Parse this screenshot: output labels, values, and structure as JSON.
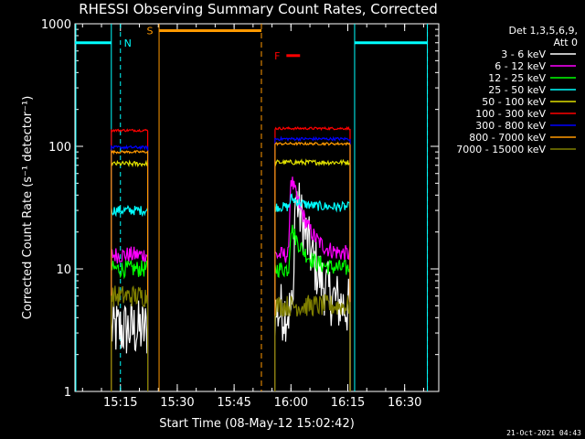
{
  "chart_data": {
    "type": "line",
    "title": "RHESSI Observing Summary Count Rates, Corrected",
    "xlabel": "Start Time (08-May-12 15:02:42)",
    "ylabel": "Corrected Count Rate (s⁻¹ detector⁻¹)",
    "yscale": "log",
    "ylim": [
      1,
      1000
    ],
    "xlim_minutes": [
      15.05,
      16.65
    ],
    "yticks": [
      {
        "value": 1,
        "label": "1"
      },
      {
        "value": 10,
        "label": "10"
      },
      {
        "value": 100,
        "label": "100"
      },
      {
        "value": 1000,
        "label": "1000"
      }
    ],
    "xticks": [
      {
        "value": 15.25,
        "label": "15:15"
      },
      {
        "value": 15.5,
        "label": "15:30"
      },
      {
        "value": 15.75,
        "label": "15:45"
      },
      {
        "value": 16.0,
        "label": "16:00"
      },
      {
        "value": 16.25,
        "label": "16:15"
      },
      {
        "value": 16.5,
        "label": "16:30"
      }
    ],
    "legend": {
      "position": "right",
      "header": [
        "Det 1,3,5,6,9,",
        "Att 0"
      ],
      "entries": [
        {
          "label": "3 - 6 keV",
          "color": "#ffffff"
        },
        {
          "label": "6 - 12 keV",
          "color": "#ff00ff"
        },
        {
          "label": "12 - 25 keV",
          "color": "#00ff00"
        },
        {
          "label": "25 - 50 keV",
          "color": "#00ffff"
        },
        {
          "label": "50 - 100 keV",
          "color": "#e0e000"
        },
        {
          "label": "100 - 300 keV",
          "color": "#ff0000"
        },
        {
          "label": "300 - 800 keV",
          "color": "#0000ff"
        },
        {
          "label": "800 - 7000 keV",
          "color": "#ff9900"
        },
        {
          "label": "7000 - 15000 keV",
          "color": "#808000"
        }
      ]
    },
    "segments": [
      [
        15.21,
        15.37
      ],
      [
        15.93,
        16.26
      ]
    ],
    "series": [
      {
        "name": "3 - 6 keV",
        "color": "#ffffff",
        "level": [
          3.2,
          4.5
        ],
        "noise": 0.25,
        "flare": {
          "t": 16.02,
          "peak": 40
        }
      },
      {
        "name": "6 - 12 keV",
        "color": "#ff00ff",
        "level": [
          13,
          13
        ],
        "noise": 0.07,
        "flare": {
          "t": 16.0,
          "peak": 55
        }
      },
      {
        "name": "12 - 25 keV",
        "color": "#00ff00",
        "level": [
          10,
          10
        ],
        "noise": 0.07,
        "flare": {
          "t": 16.0,
          "peak": 22
        }
      },
      {
        "name": "25 - 50 keV",
        "color": "#00ffff",
        "level": [
          30,
          32
        ],
        "noise": 0.04,
        "flare": {
          "t": 16.0,
          "peak": 38
        }
      },
      {
        "name": "50 - 100 keV",
        "color": "#e0e000",
        "level": [
          72,
          74
        ],
        "noise": 0.02,
        "flare": null
      },
      {
        "name": "100 - 300 keV",
        "color": "#ff0000",
        "level": [
          135,
          140
        ],
        "noise": 0.01,
        "flare": null
      },
      {
        "name": "300 - 800 keV",
        "color": "#0000ff",
        "level": [
          98,
          115
        ],
        "noise": 0.012,
        "flare": null
      },
      {
        "name": "800 - 7000 keV",
        "color": "#ff9900",
        "level": [
          90,
          105
        ],
        "noise": 0.01,
        "flare": null
      },
      {
        "name": "7000 - 15000 keV",
        "color": "#808000",
        "level": [
          6,
          5
        ],
        "noise": 0.09,
        "flare": null
      }
    ],
    "annotations": [
      {
        "label": "N",
        "color": "#00ffff",
        "kind": "night",
        "x0": 15.05,
        "x1": 15.21,
        "marker": 15.25,
        "y": 700
      },
      {
        "label": "S",
        "color": "#ff9900",
        "kind": "saa",
        "x0": 15.42,
        "x1": 15.87,
        "y": 880
      },
      {
        "label": "F",
        "color": "#ff0000",
        "kind": "flare",
        "x0": 15.98,
        "x1": 16.04,
        "y": 550
      },
      {
        "label": "",
        "color": "#00ffff",
        "kind": "night2",
        "x0": 16.28,
        "x1": 16.6,
        "marker": 16.6,
        "y": 700
      }
    ]
  },
  "footer_timestamp": "21-Oct-2021 04:43"
}
